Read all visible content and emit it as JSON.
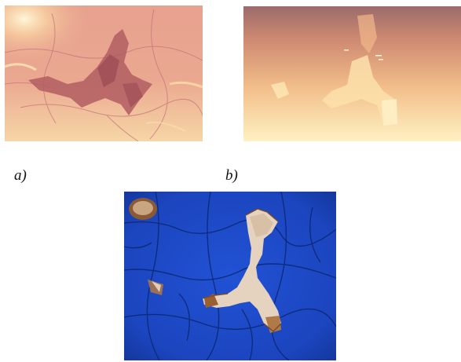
{
  "figure": {
    "panels": [
      {
        "id": "a",
        "caption": "a)"
      },
      {
        "id": "b",
        "caption": "b)"
      },
      {
        "id": "c",
        "caption": ""
      }
    ]
  },
  "colors": {
    "panel_a_base": "#e8a08e",
    "panel_a_dark": "#b25a5e",
    "panel_a_light": "#ffe9b0",
    "panel_b_top": "#9a6a6a",
    "panel_b_bottom": "#fff2c0",
    "panel_b_highlight": "#ffe8b0",
    "panel_c_base": "#1e49c8",
    "panel_c_dark": "#0d2a78",
    "panel_c_chip": "#e8d6c2",
    "panel_c_rust": "#8a5528"
  }
}
